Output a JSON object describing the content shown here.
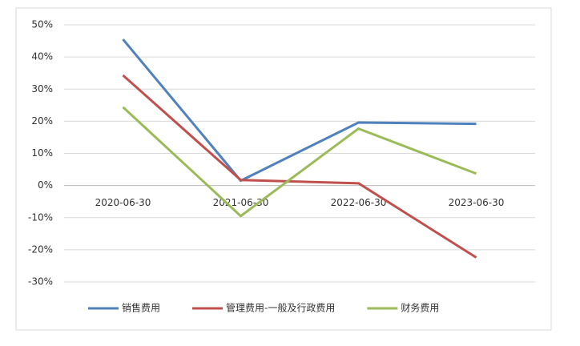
{
  "chart_data": {
    "type": "line",
    "categories": [
      "2020-06-30",
      "2021-06-30",
      "2022-06-30",
      "2023-06-30"
    ],
    "series": [
      {
        "name": "销售费用",
        "color": "#4f81bd",
        "values": [
          45.5,
          1.5,
          19.6,
          19.2
        ]
      },
      {
        "name": "管理费用-一般及行政费用",
        "color": "#c0504d",
        "values": [
          34.3,
          1.7,
          0.7,
          -22.4
        ]
      },
      {
        "name": "财务费用",
        "color": "#9bbb59",
        "values": [
          24.4,
          -9.5,
          17.7,
          3.7
        ]
      }
    ],
    "ylim": [
      -30,
      50
    ],
    "yticks": [
      {
        "value": -30,
        "label": "-30%"
      },
      {
        "value": -20,
        "label": "-20%"
      },
      {
        "value": -10,
        "label": "-10%"
      },
      {
        "value": 0,
        "label": "0%"
      },
      {
        "value": 10,
        "label": "10%"
      },
      {
        "value": 20,
        "label": "20%"
      },
      {
        "value": 30,
        "label": "30%"
      },
      {
        "value": 40,
        "label": "40%"
      },
      {
        "value": 50,
        "label": "50%"
      }
    ],
    "grid": true,
    "legend": "bottom"
  }
}
